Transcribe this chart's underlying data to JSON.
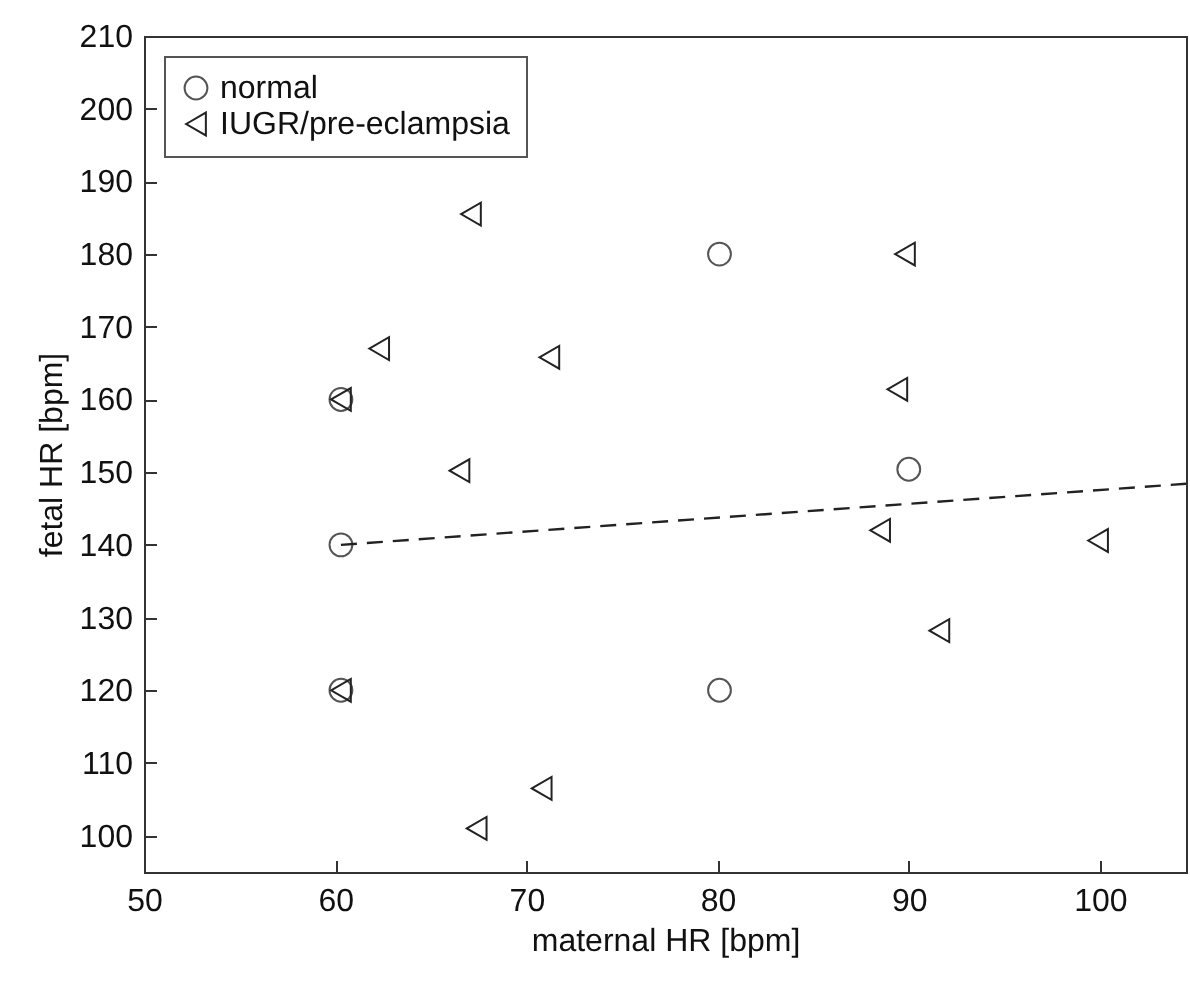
{
  "chart_data": {
    "type": "scatter",
    "xlabel": "maternal HR [bpm]",
    "ylabel": "fetal HR [bpm]",
    "xlim": [
      50,
      104.5
    ],
    "ylim": [
      95,
      210
    ],
    "xticks": [
      50,
      60,
      70,
      80,
      90,
      100
    ],
    "yticks": [
      100,
      110,
      120,
      130,
      140,
      150,
      160,
      170,
      180,
      190,
      200,
      210
    ],
    "legend": "top left",
    "series": [
      {
        "name": "normal",
        "type": "scatter",
        "marker": "circle",
        "color": "#555555",
        "x": [
          60.3,
          60.3,
          60.3,
          80.1,
          80.1,
          90
        ],
        "values": [
          160,
          140,
          120,
          180,
          120,
          150.4
        ]
      },
      {
        "name": "IUGR/pre-eclampsia",
        "type": "scatter",
        "marker": "triangle",
        "color": "#222222",
        "x": [
          67.1,
          62.3,
          71.2,
          66.5,
          60.3,
          60.3,
          67.4,
          70.8,
          89.8,
          89.4,
          88.5,
          99.9,
          91.6
        ],
        "values": [
          185.5,
          167,
          165.8,
          150.2,
          160,
          120,
          101,
          106.5,
          180,
          161.4,
          142,
          140.6,
          128.2
        ]
      },
      {
        "type": "line",
        "color": "#222222",
        "line_style": "dashed",
        "marker": "none",
        "x": [
          60.3,
          104.5
        ],
        "values": [
          140,
          148.4
        ]
      }
    ]
  }
}
